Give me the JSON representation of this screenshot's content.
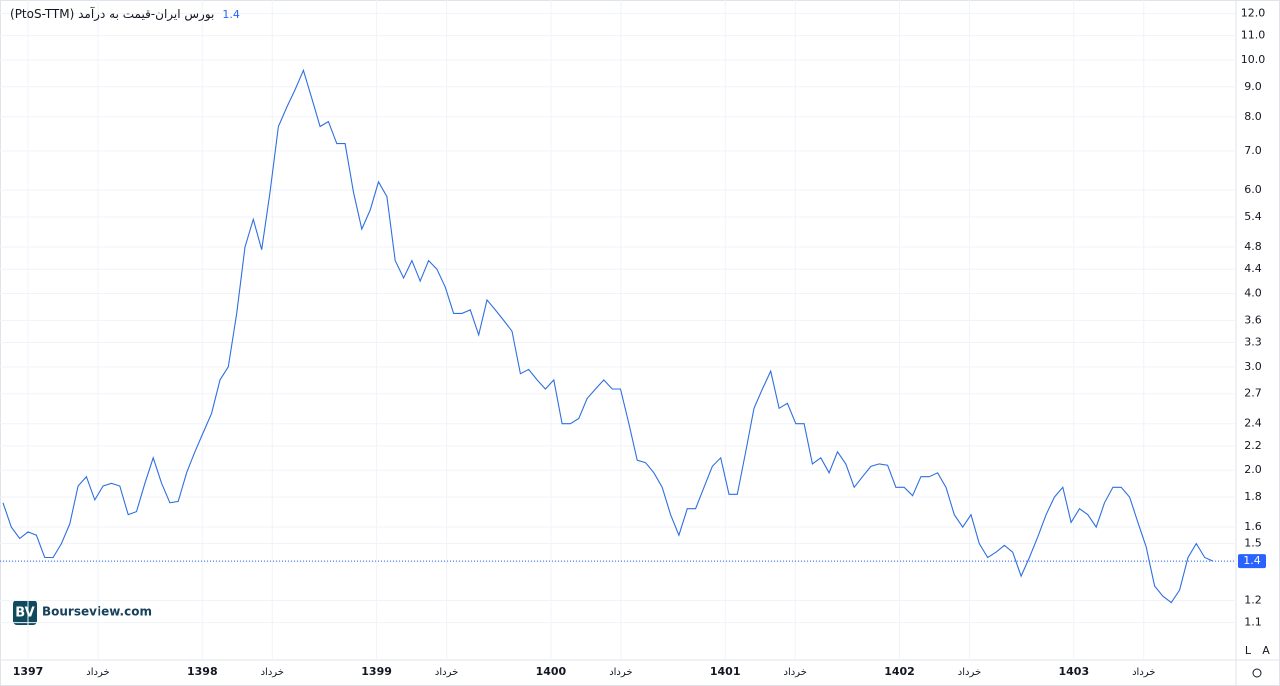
{
  "chart_data": {
    "type": "line",
    "title": "بورس ایران-قیمت به درآمد (PtoS-TTM)",
    "current_value": 1.4,
    "log_scale": true,
    "grid": true,
    "color": "#2f6fe0",
    "ylim": [
      0.95,
      12.5
    ],
    "yticks": [
      1.1,
      1.2,
      1.4,
      1.5,
      1.6,
      1.8,
      {
        "value": 2,
        "label": "2.0"
      },
      2.2,
      2.4,
      2.7,
      {
        "value": 3,
        "label": "3.0"
      },
      3.3,
      3.6,
      {
        "value": 4,
        "label": "4.0"
      },
      4.4,
      4.8,
      5.4,
      {
        "value": 6,
        "label": "6.0"
      },
      {
        "value": 7,
        "label": "7.0"
      },
      {
        "value": 8,
        "label": "8.0"
      },
      {
        "value": 9,
        "label": "9.0"
      },
      {
        "value": 10,
        "label": "10.0"
      },
      {
        "value": 11,
        "label": "11.0"
      },
      {
        "value": 12,
        "label": "12.0"
      }
    ],
    "x_axis_labels": [
      "1397",
      "خرداد",
      "1398",
      "خرداد",
      "1399",
      "خرداد",
      "1400",
      "خرداد",
      "1401",
      "خرداد",
      "1402",
      "خرداد",
      "1403",
      "خرداد"
    ],
    "values": [
      1.76,
      1.6,
      1.53,
      1.57,
      1.55,
      1.42,
      1.42,
      1.5,
      1.62,
      1.88,
      1.95,
      1.78,
      1.88,
      1.9,
      1.88,
      1.68,
      1.7,
      1.9,
      2.1,
      1.9,
      1.76,
      1.77,
      1.98,
      2.15,
      2.32,
      2.5,
      2.85,
      3.0,
      3.7,
      4.8,
      5.35,
      4.75,
      5.95,
      7.7,
      8.3,
      8.9,
      9.6,
      8.6,
      7.7,
      7.85,
      7.2,
      7.2,
      5.95,
      5.15,
      5.55,
      6.2,
      5.85,
      4.55,
      4.25,
      4.55,
      4.2,
      4.55,
      4.4,
      4.1,
      3.7,
      3.7,
      3.75,
      3.4,
      3.9,
      3.75,
      3.6,
      3.45,
      2.92,
      2.97,
      2.85,
      2.75,
      2.85,
      2.4,
      2.4,
      2.45,
      2.65,
      2.75,
      2.85,
      2.75,
      2.75,
      2.4,
      2.08,
      2.06,
      1.98,
      1.87,
      1.68,
      1.55,
      1.72,
      1.72,
      1.87,
      2.03,
      2.1,
      1.82,
      1.82,
      2.15,
      2.55,
      2.75,
      2.95,
      2.55,
      2.6,
      2.4,
      2.4,
      2.05,
      2.1,
      1.98,
      2.15,
      2.05,
      1.87,
      1.95,
      2.03,
      2.05,
      2.04,
      1.87,
      1.87,
      1.81,
      1.95,
      1.95,
      1.98,
      1.87,
      1.68,
      1.6,
      1.68,
      1.5,
      1.42,
      1.45,
      1.49,
      1.45,
      1.32,
      1.42,
      1.54,
      1.68,
      1.8,
      1.87,
      1.63,
      1.72,
      1.68,
      1.6,
      1.76,
      1.87,
      1.87,
      1.8,
      1.63,
      1.48,
      1.27,
      1.22,
      1.19,
      1.25,
      1.42,
      1.5,
      1.42,
      1.4
    ]
  },
  "watermark": "Bourseview.com",
  "logo": "BV",
  "scale_buttons": [
    "L",
    "A"
  ]
}
